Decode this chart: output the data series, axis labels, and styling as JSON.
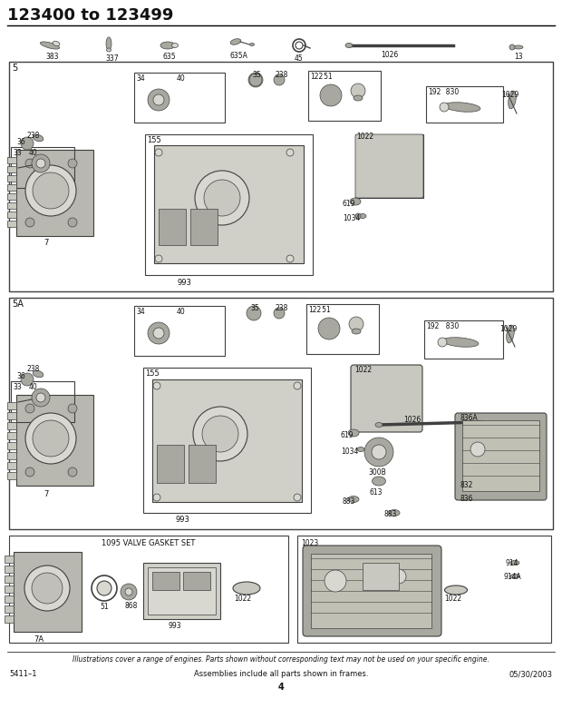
{
  "title": "123400 to 123499",
  "bg_color": "#ffffff",
  "footer_left": "5411–1",
  "footer_center": "Assemblies include all parts shown in frames.",
  "footer_center2": "4",
  "footer_right": "05/30/2003",
  "footer_italic": "Illustrations cover a range of engines. Parts shown without corresponding text may not be used on your specific engine.",
  "sec5_label": "5",
  "sec5A_label": "5A",
  "gasket_label": "1095 VALVE GASKET SET",
  "gray1": "#c8c8c0",
  "gray2": "#a8a8a0",
  "gray3": "#d8d8d0",
  "gray4": "#b0b0a8",
  "dark": "#404040",
  "mid": "#787878",
  "line_color": "#333333"
}
